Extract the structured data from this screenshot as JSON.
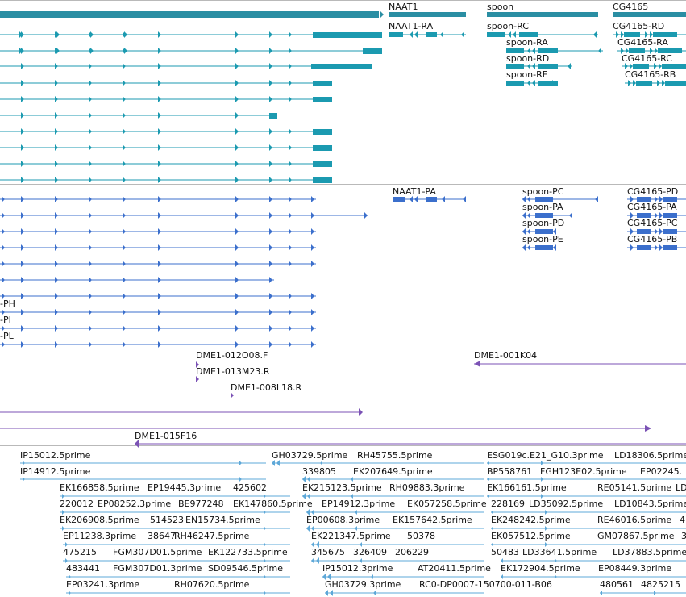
{
  "colors": {
    "gene": "#2a8ea3",
    "transcript": "#1b9ab0",
    "protein": "#3b6fcc",
    "clone": "#7b52b5",
    "est": "#5ea8d8",
    "divider": "#b9b9b9"
  },
  "genes": [
    "NAAT1",
    "spoon",
    "CG4165"
  ],
  "transcripts": [
    "NAAT1-RA",
    "spoon-RC",
    "spoon-RA",
    "spoon-RD",
    "spoon-RE",
    "CG4165-RD",
    "CG4165-RA",
    "CG4165-RC",
    "CG4165-RB"
  ],
  "proteins": [
    "NAAT1-PA",
    "spoon-PC",
    "spoon-PA",
    "spoon-PD",
    "spoon-PE",
    "CG4165-PD",
    "CG4165-PA",
    "CG4165-PC",
    "CG4165-PB",
    "-PH",
    "-PI",
    "-PL"
  ],
  "clones": [
    "DME1-012O08.F",
    "DME1-013M23.R",
    "DME1-008L18.R",
    "DME1-001K04",
    "DME1-015F16"
  ],
  "ests": [
    "IP15012.5prime",
    "IP14912.5prime",
    "EK166858.5prime",
    "EP19445.3prime",
    "425602",
    "220012",
    "EP08252.3prime",
    "BE977248",
    "EK147860.5prime",
    "EK206908.5prime",
    "514523",
    "EN15734.5prime",
    "EP11238.3prime",
    "38647",
    "RH46247.5prime",
    "475215",
    "FGM307D01.5prime",
    "EK122733.5prime",
    "483441",
    "FGM307D01.3prime",
    "SD09546.5prime",
    "EP03241.3prime",
    "RH07620.5prime",
    "GH03729.5prime",
    "RH45755.5prime",
    "339805",
    "EK207649.5prime",
    "EK215123.5prime",
    "RH09883.3prime",
    "EP14912.3prime",
    "EK057258.5prime",
    "EP00608.3prime",
    "EK157642.5prime",
    "EK221347.5prime",
    "50378",
    "345675",
    "326409",
    "206229",
    "IP15012.3prime",
    "AT20411.5prime",
    "GH03729.3prime",
    "RC0-DP0007-150700-011-B06",
    "ESG019c.E21_G10.3prime",
    "LD18306.5prime",
    "BP558761",
    "FGH123E02.5prime",
    "EP02245.",
    "EK166161.5prime",
    "RE05141.5prime",
    "LD",
    "228169",
    "LD35092.5prime",
    "LD10843.5prime",
    "EK248242.5prime",
    "RE46016.5prime",
    "4",
    "EK057512.5prime",
    "GM07867.5prime",
    "3",
    "50483",
    "LD33641.5prime",
    "LD37883.5prime",
    "EK172904.5prime",
    "EP08449.3prime",
    "480561",
    "4825215"
  ]
}
